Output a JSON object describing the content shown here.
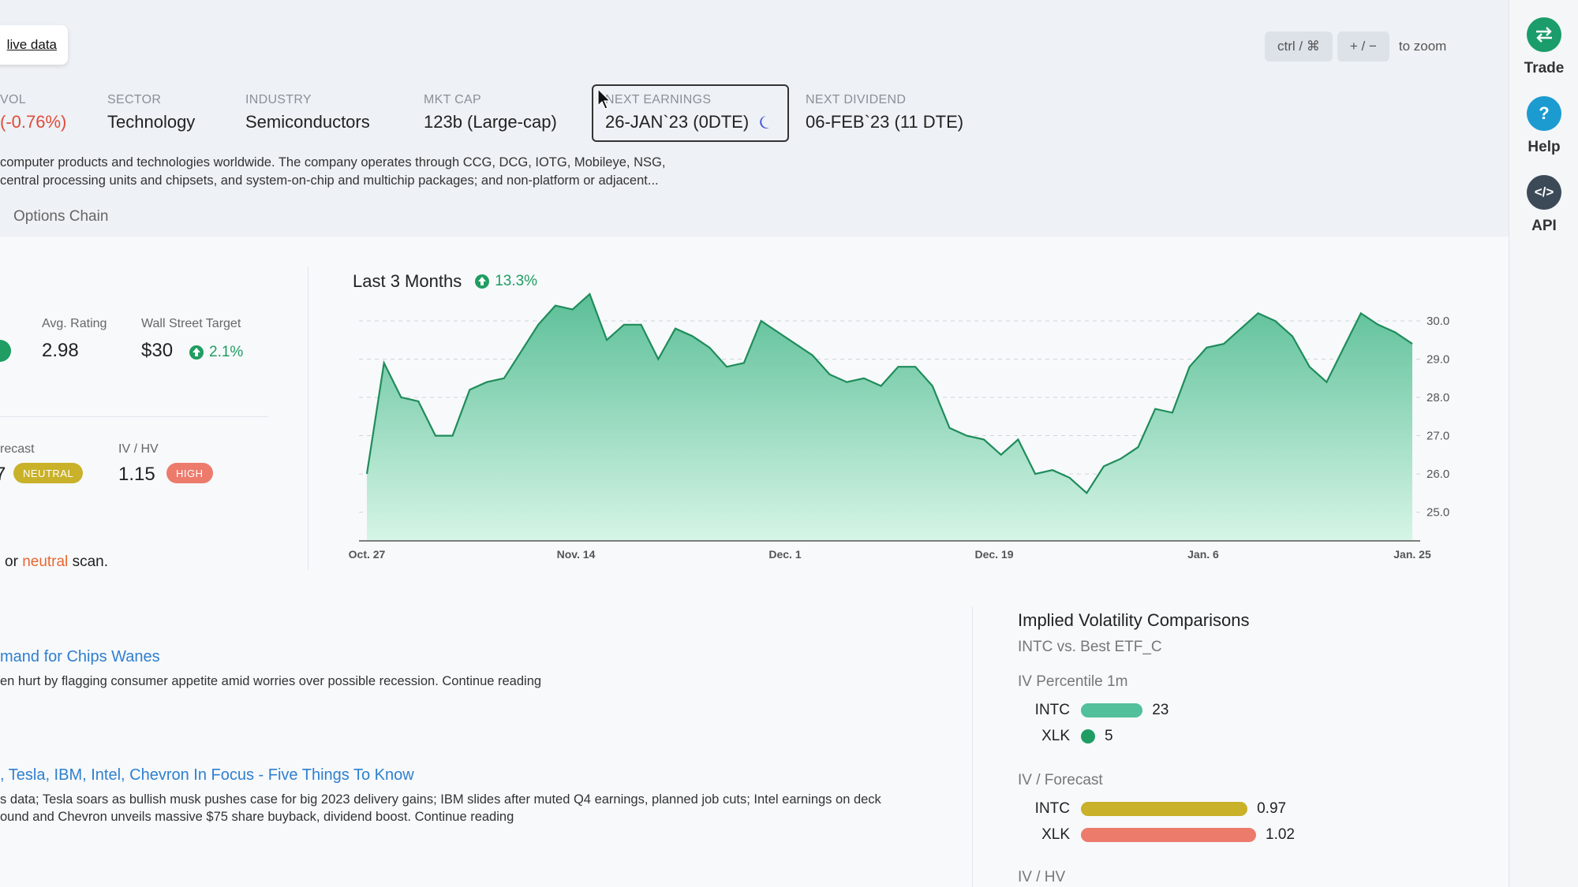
{
  "live_link": "live data",
  "zoom": {
    "key1": "ctrl / ⌘",
    "key2": "+ / −",
    "suffix": "to zoom"
  },
  "stats": [
    {
      "label": "VOL",
      "value": "(-0.76%)"
    },
    {
      "label": "SECTOR",
      "value": "Technology"
    },
    {
      "label": "INDUSTRY",
      "value": "Semiconductors"
    },
    {
      "label": "MKT CAP",
      "value": "123b (Large-cap)"
    },
    {
      "label": "NEXT EARNINGS",
      "value": "26-JAN`23 (0DTE)"
    },
    {
      "label": "NEXT DIVIDEND",
      "value": "06-FEB`23 (11 DTE)"
    }
  ],
  "description": {
    "line1": "computer products and technologies worldwide. The company operates through CCG, DCG, IOTG, Mobileye, NSG,",
    "line2": "central processing units and chipsets, and system-on-chip and multichip packages; and non-platform or adjacent..."
  },
  "tabs": {
    "options_chain": "Options Chain"
  },
  "ratings": {
    "avg_label": "Avg. Rating",
    "avg_value": "2.98",
    "target_label": "Wall Street Target",
    "target_value": "$30",
    "target_change": "2.1%",
    "forecast_label": "recast",
    "forecast_value": "7",
    "forecast_badge": "NEUTRAL",
    "ivhv_label": "IV / HV",
    "ivhv_value": "1.15",
    "ivhv_badge": "HIGH",
    "scan_pre": "or",
    "scan_word": "neutral",
    "scan_post": "scan."
  },
  "colors": {
    "green": "#1f9d62",
    "neutral": "#c9b12a",
    "high": "#ec7b6c",
    "intc_bar": "#52c09a",
    "xlk_dot": "#1f9d62",
    "trade": "#1a9c6b",
    "help": "#1c9bd0",
    "api": "#3c4a58"
  },
  "chart_data": {
    "type": "area",
    "title": "Last 3 Months",
    "change": "13.3%",
    "x_labels": [
      "Oct. 27",
      "Nov. 14",
      "Dec. 1",
      "Dec. 19",
      "Jan. 6",
      "Jan. 25"
    ],
    "y_ticks": [
      "30.0",
      "29.0",
      "28.0",
      "27.0",
      "26.0",
      "25.0"
    ],
    "ylim": [
      24.25,
      30.7
    ],
    "grid": true,
    "values": [
      26.0,
      28.9,
      28.0,
      27.9,
      27.0,
      27.0,
      28.2,
      28.4,
      28.5,
      29.2,
      29.9,
      30.4,
      30.3,
      30.7,
      29.5,
      29.9,
      29.9,
      29.0,
      29.8,
      29.6,
      29.3,
      28.8,
      28.9,
      30.0,
      29.7,
      29.4,
      29.1,
      28.6,
      28.4,
      28.5,
      28.3,
      28.8,
      28.8,
      28.3,
      27.2,
      27.0,
      26.9,
      26.5,
      26.9,
      26.0,
      26.1,
      25.9,
      25.5,
      26.2,
      26.4,
      26.7,
      27.7,
      27.6,
      28.8,
      29.3,
      29.4,
      29.8,
      30.2,
      30.0,
      29.6,
      28.8,
      28.4,
      29.3,
      30.2,
      29.9,
      29.7,
      29.4
    ]
  },
  "news": [
    {
      "title": "mand for Chips Wanes",
      "body": "en hurt by flagging consumer appetite amid worries over possible recession. Continue reading"
    },
    {
      "title": ", Tesla, IBM, Intel, Chevron In Focus - Five Things To Know",
      "body1": "s data; Tesla soars as bullish musk pushes case for big 2023 delivery gains; IBM slides after muted Q4 earnings, planned job cuts; Intel earnings on deck",
      "body2": "ound and Chevron unveils massive $75 share buyback, dividend boost. Continue reading"
    }
  ],
  "iv": {
    "title": "Implied Volatility Comparisons",
    "subtitle": "INTC vs. Best ETF_C",
    "percentile_label": "IV Percentile 1m",
    "percentile": [
      {
        "ticker": "INTC",
        "value": "23",
        "fraction": 0.23
      },
      {
        "ticker": "XLK",
        "value": "5",
        "fraction": 0.05
      }
    ],
    "forecast_label": "IV / Forecast",
    "forecast": [
      {
        "ticker": "INTC",
        "value": "0.97",
        "fraction": 0.951
      },
      {
        "ticker": "XLK",
        "value": "1.02",
        "fraction": 1.0
      }
    ],
    "ivhv_label": "IV / HV"
  },
  "sidebar": {
    "trade": "Trade",
    "help": "Help",
    "help_glyph": "?",
    "api": "API",
    "api_glyph": "</>"
  }
}
